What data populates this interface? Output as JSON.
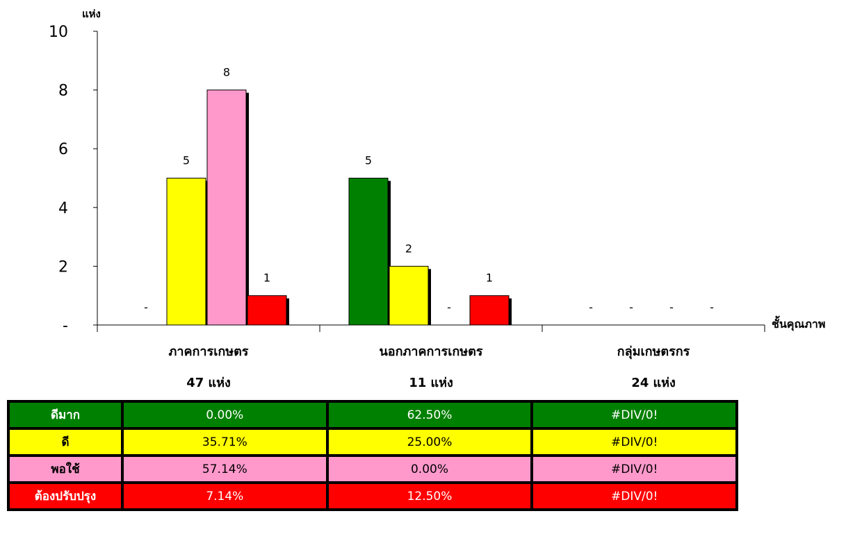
{
  "chart_data": {
    "type": "bar",
    "y_unit_label": "แห่ง",
    "x_axis_label": "ชั้นคุณภาพ",
    "ylim": [
      0,
      10
    ],
    "y_ticks": [
      "-",
      "2",
      "4",
      "6",
      "8",
      "10"
    ],
    "categories": [
      "ภาคการเกษตร",
      "นอกภาคการเกษตร",
      "กลุ่มเกษตรกร"
    ],
    "category_totals": [
      "47  แห่ง",
      "11  แห่ง",
      "24  แห่ง"
    ],
    "series": [
      {
        "name": "ดีมาก",
        "color": "#008000",
        "values": [
          0,
          5,
          0
        ],
        "labels": [
          "-",
          "5",
          "-"
        ]
      },
      {
        "name": "ดี",
        "color": "#ffff00",
        "values": [
          5,
          2,
          0
        ],
        "labels": [
          "5",
          "2",
          "-"
        ]
      },
      {
        "name": "พอใช้",
        "color": "#ff99cc",
        "values": [
          8,
          0,
          0
        ],
        "labels": [
          "8",
          "-",
          "-"
        ]
      },
      {
        "name": "ต้องปรับปรุง",
        "color": "#ff0000",
        "values": [
          1,
          1,
          0
        ],
        "labels": [
          "1",
          "1",
          "-"
        ]
      }
    ],
    "grid": false,
    "legend": "table-below"
  },
  "table": {
    "rows": [
      {
        "label": "ดีมาก",
        "bg": "#008000",
        "cells": [
          "0.00%",
          "62.50%",
          "#DIV/0!"
        ]
      },
      {
        "label": "ดี",
        "bg": "#ffff00",
        "cells": [
          "35.71%",
          "25.00%",
          "#DIV/0!"
        ]
      },
      {
        "label": "พอใช้",
        "bg": "#ff99cc",
        "cells": [
          "57.14%",
          "0.00%",
          "#DIV/0!"
        ]
      },
      {
        "label": "ต้องปรับปรุง",
        "bg": "#ff0000",
        "cells": [
          "7.14%",
          "12.50%",
          "#DIV/0!"
        ]
      }
    ]
  }
}
